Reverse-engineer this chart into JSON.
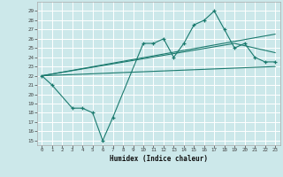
{
  "xlabel": "Humidex (Indice chaleur)",
  "bg_color": "#cce8ea",
  "grid_color": "#ffffff",
  "line_color": "#1a7a6e",
  "x_ticks": [
    0,
    1,
    2,
    3,
    4,
    5,
    6,
    7,
    8,
    9,
    10,
    11,
    12,
    13,
    14,
    15,
    16,
    17,
    18,
    19,
    20,
    21,
    22,
    23
  ],
  "y_ticks": [
    15,
    16,
    17,
    18,
    19,
    20,
    21,
    22,
    23,
    24,
    25,
    26,
    27,
    28,
    29
  ],
  "ylim": [
    14.5,
    30.0
  ],
  "xlim": [
    -0.5,
    23.5
  ],
  "line1_x": [
    0,
    1,
    3,
    4,
    5,
    6,
    7,
    10,
    11,
    12,
    13,
    14,
    15,
    16,
    17,
    18,
    19,
    20,
    21,
    22,
    23
  ],
  "line1_y": [
    22,
    21,
    18.5,
    18.5,
    18,
    15,
    17.5,
    25.5,
    25.5,
    26,
    24,
    25.5,
    27.5,
    28,
    29,
    27,
    25,
    25.5,
    24,
    23.5,
    23.5
  ],
  "line2_x": [
    0,
    23
  ],
  "line2_y": [
    22,
    23.0
  ],
  "line3_x": [
    0,
    23
  ],
  "line3_y": [
    22,
    26.5
  ],
  "line4_x": [
    0,
    19,
    23
  ],
  "line4_y": [
    22,
    25.5,
    24.5
  ]
}
